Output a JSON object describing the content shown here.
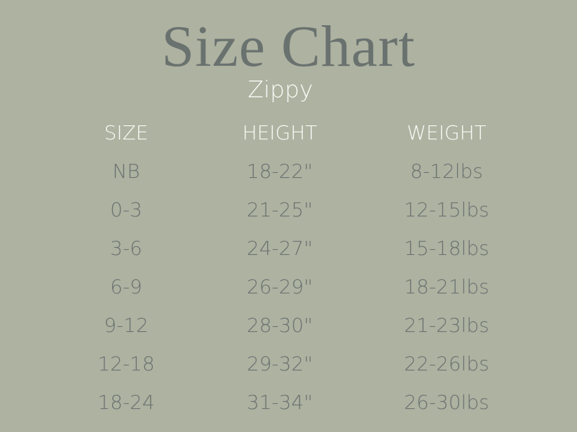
{
  "title": "Size Chart",
  "subtitle": "Zippy",
  "colors": {
    "background": "#adb2a1",
    "title": "#6a726f",
    "header": "#fafaf5",
    "body_text": "#6b7370"
  },
  "table": {
    "headers": [
      "SIZE",
      "HEIGHT",
      "WEIGHT"
    ],
    "rows": [
      [
        "NB",
        "18-22\"",
        "8-12lbs"
      ],
      [
        "0-3",
        "21-25\"",
        "12-15lbs"
      ],
      [
        "3-6",
        "24-27\"",
        "15-18lbs"
      ],
      [
        "6-9",
        "26-29\"",
        "18-21lbs"
      ],
      [
        "9-12",
        "28-30\"",
        "21-23lbs"
      ],
      [
        "12-18",
        "29-32\"",
        "22-26lbs"
      ],
      [
        "18-24",
        "31-34\"",
        "26-30lbs"
      ]
    ]
  }
}
